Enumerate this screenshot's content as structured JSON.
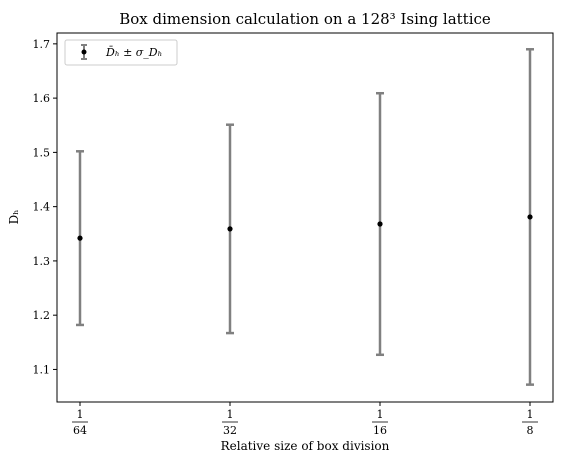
{
  "chart_data": {
    "type": "scatter",
    "title": "Box dimension calculation on a 128³ Ising lattice",
    "xlabel": "Relative size of box division",
    "ylabel": "D_H",
    "ylabel_display": "Dₕ",
    "x_scale": "log2",
    "x_ticks": [
      {
        "value": 0.015625,
        "numerator": "1",
        "denominator": "64"
      },
      {
        "value": 0.03125,
        "numerator": "1",
        "denominator": "32"
      },
      {
        "value": 0.0625,
        "numerator": "1",
        "denominator": "16"
      },
      {
        "value": 0.125,
        "numerator": "1",
        "denominator": "8"
      }
    ],
    "ylim": [
      1.04,
      1.72
    ],
    "y_ticks": [
      "1.1",
      "1.2",
      "1.3",
      "1.4",
      "1.5",
      "1.6",
      "1.7"
    ],
    "legend": {
      "placement": "top-left",
      "label": "D̄_H ± σ_{D_H}",
      "label_display": "D̄ₕ ± σ_Dₕ"
    },
    "grid": false,
    "series": [
      {
        "x": [
          0.015625,
          0.03125,
          0.0625,
          0.125
        ],
        "y": [
          1.342,
          1.359,
          1.368,
          1.381
        ],
        "yerr": [
          0.16,
          0.192,
          0.241,
          0.309
        ],
        "marker_color": "#000000",
        "errorbar_color": "#808080"
      }
    ]
  }
}
